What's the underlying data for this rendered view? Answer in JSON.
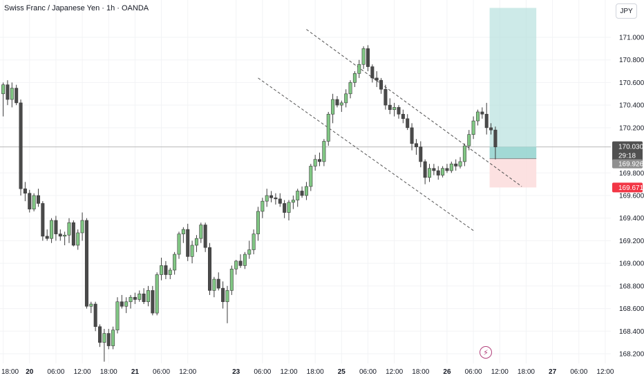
{
  "header": {
    "title": "Swiss Franc / Japanese Yen · 1h · OANDA"
  },
  "price_axis": {
    "currency": "JPY"
  },
  "icons": {
    "alert": "lightning-icon"
  },
  "colors": {
    "up": "#81c784",
    "down": "#4a4a4a",
    "target_zone": "#b2dfdb",
    "stop_zone": "#fcdede",
    "current_price_badge": "#505050",
    "stop_badge": "#f23645"
  },
  "chart_data": {
    "type": "candlestick",
    "title": "Swiss Franc / Japanese Yen · 1h · OANDA",
    "instrument": "CHFJPY",
    "timeframe": "1h",
    "ylim": [
      168.13,
      171.28
    ],
    "yticks": [
      171.0,
      170.8,
      170.6,
      170.4,
      170.2,
      169.8,
      169.6,
      169.4,
      169.2,
      169.0,
      168.8,
      168.6,
      168.4,
      168.2
    ],
    "ytick_labels": [
      "171.000",
      "170.800",
      "170.600",
      "170.400",
      "170.200",
      "169.800",
      "169.600",
      "169.400",
      "169.200",
      "169.000",
      "168.800",
      "168.600",
      "168.400",
      "168.200"
    ],
    "xticks": [
      {
        "label": "18:00",
        "bar": 0,
        "bold": false
      },
      {
        "label": "20",
        "bar": 6,
        "bold": true
      },
      {
        "label": "06:00",
        "bar": 12,
        "bold": false
      },
      {
        "label": "12:00",
        "bar": 18,
        "bold": false
      },
      {
        "label": "18:00",
        "bar": 24,
        "bold": false
      },
      {
        "label": "21",
        "bar": 30,
        "bold": true
      },
      {
        "label": "06:00",
        "bar": 36,
        "bold": false
      },
      {
        "label": "12:00",
        "bar": 42,
        "bold": false
      },
      {
        "label": "23",
        "bar": 53,
        "bold": true
      },
      {
        "label": "06:00",
        "bar": 59,
        "bold": false
      },
      {
        "label": "12:00",
        "bar": 65,
        "bold": false
      },
      {
        "label": "18:00",
        "bar": 71,
        "bold": false
      },
      {
        "label": "25",
        "bar": 77,
        "bold": true
      },
      {
        "label": "06:00",
        "bar": 83,
        "bold": false
      },
      {
        "label": "12:00",
        "bar": 89,
        "bold": false
      },
      {
        "label": "18:00",
        "bar": 95,
        "bold": false
      },
      {
        "label": "26",
        "bar": 101,
        "bold": true
      },
      {
        "label": "06:00",
        "bar": 107,
        "bold": false
      },
      {
        "label": "12:00",
        "bar": 113,
        "bold": false
      },
      {
        "label": "18:00",
        "bar": 119,
        "bold": false
      },
      {
        "label": "27",
        "bar": 125,
        "bold": true
      },
      {
        "label": "06:00",
        "bar": 131,
        "bold": false
      },
      {
        "label": "12:00",
        "bar": 137,
        "bold": false
      }
    ],
    "candles": [
      {
        "o": 170.5,
        "h": 170.6,
        "l": 170.3,
        "c": 170.58
      },
      {
        "o": 170.58,
        "h": 170.62,
        "l": 170.4,
        "c": 170.45
      },
      {
        "o": 170.45,
        "h": 170.6,
        "l": 170.38,
        "c": 170.55
      },
      {
        "o": 170.55,
        "h": 170.58,
        "l": 170.4,
        "c": 170.42
      },
      {
        "o": 170.42,
        "h": 170.45,
        "l": 169.6,
        "c": 169.66
      },
      {
        "o": 169.66,
        "h": 169.72,
        "l": 169.55,
        "c": 169.62
      },
      {
        "o": 169.62,
        "h": 169.65,
        "l": 169.45,
        "c": 169.48
      },
      {
        "o": 169.48,
        "h": 169.62,
        "l": 169.46,
        "c": 169.6
      },
      {
        "o": 169.6,
        "h": 169.66,
        "l": 169.5,
        "c": 169.53
      },
      {
        "o": 169.53,
        "h": 169.55,
        "l": 169.2,
        "c": 169.24
      },
      {
        "o": 169.24,
        "h": 169.3,
        "l": 169.2,
        "c": 169.22
      },
      {
        "o": 169.22,
        "h": 169.4,
        "l": 169.18,
        "c": 169.38
      },
      {
        "o": 169.38,
        "h": 169.42,
        "l": 169.2,
        "c": 169.26
      },
      {
        "o": 169.26,
        "h": 169.3,
        "l": 169.2,
        "c": 169.24
      },
      {
        "o": 169.24,
        "h": 169.28,
        "l": 169.16,
        "c": 169.25
      },
      {
        "o": 169.25,
        "h": 169.4,
        "l": 169.18,
        "c": 169.36
      },
      {
        "o": 169.36,
        "h": 169.38,
        "l": 169.15,
        "c": 169.16
      },
      {
        "o": 169.16,
        "h": 169.3,
        "l": 169.12,
        "c": 169.27
      },
      {
        "o": 169.27,
        "h": 169.45,
        "l": 169.2,
        "c": 169.38
      },
      {
        "o": 169.38,
        "h": 169.4,
        "l": 168.6,
        "c": 168.62
      },
      {
        "o": 168.62,
        "h": 168.66,
        "l": 168.56,
        "c": 168.64
      },
      {
        "o": 168.64,
        "h": 168.66,
        "l": 168.4,
        "c": 168.44
      },
      {
        "o": 168.44,
        "h": 168.46,
        "l": 168.26,
        "c": 168.3
      },
      {
        "o": 168.3,
        "h": 168.42,
        "l": 168.13,
        "c": 168.38
      },
      {
        "o": 168.38,
        "h": 168.42,
        "l": 168.24,
        "c": 168.27
      },
      {
        "o": 168.27,
        "h": 168.44,
        "l": 168.24,
        "c": 168.41
      },
      {
        "o": 168.41,
        "h": 168.7,
        "l": 168.38,
        "c": 168.66
      },
      {
        "o": 168.66,
        "h": 168.72,
        "l": 168.6,
        "c": 168.62
      },
      {
        "o": 168.62,
        "h": 168.7,
        "l": 168.56,
        "c": 168.66
      },
      {
        "o": 168.66,
        "h": 168.72,
        "l": 168.6,
        "c": 168.7
      },
      {
        "o": 168.7,
        "h": 168.74,
        "l": 168.64,
        "c": 168.68
      },
      {
        "o": 168.68,
        "h": 168.76,
        "l": 168.66,
        "c": 168.73
      },
      {
        "o": 168.73,
        "h": 168.78,
        "l": 168.64,
        "c": 168.66
      },
      {
        "o": 168.66,
        "h": 168.8,
        "l": 168.62,
        "c": 168.76
      },
      {
        "o": 168.76,
        "h": 168.8,
        "l": 168.54,
        "c": 168.56
      },
      {
        "o": 168.56,
        "h": 168.92,
        "l": 168.54,
        "c": 168.9
      },
      {
        "o": 168.9,
        "h": 169.05,
        "l": 168.85,
        "c": 168.98
      },
      {
        "o": 168.98,
        "h": 169.02,
        "l": 168.86,
        "c": 168.9
      },
      {
        "o": 168.9,
        "h": 168.96,
        "l": 168.86,
        "c": 168.94
      },
      {
        "o": 168.94,
        "h": 169.1,
        "l": 168.9,
        "c": 169.08
      },
      {
        "o": 169.08,
        "h": 169.28,
        "l": 169.04,
        "c": 169.26
      },
      {
        "o": 169.26,
        "h": 169.32,
        "l": 169.18,
        "c": 169.3
      },
      {
        "o": 169.3,
        "h": 169.35,
        "l": 169.02,
        "c": 169.06
      },
      {
        "o": 169.06,
        "h": 169.2,
        "l": 169.0,
        "c": 169.16
      },
      {
        "o": 169.16,
        "h": 169.25,
        "l": 169.1,
        "c": 169.22
      },
      {
        "o": 169.22,
        "h": 169.36,
        "l": 169.18,
        "c": 169.34
      },
      {
        "o": 169.34,
        "h": 169.36,
        "l": 169.1,
        "c": 169.14
      },
      {
        "o": 169.14,
        "h": 169.18,
        "l": 168.72,
        "c": 168.76
      },
      {
        "o": 168.76,
        "h": 168.88,
        "l": 168.7,
        "c": 168.86
      },
      {
        "o": 168.86,
        "h": 168.92,
        "l": 168.76,
        "c": 168.78
      },
      {
        "o": 168.78,
        "h": 168.84,
        "l": 168.6,
        "c": 168.66
      },
      {
        "o": 168.66,
        "h": 168.8,
        "l": 168.47,
        "c": 168.76
      },
      {
        "o": 168.76,
        "h": 168.98,
        "l": 168.72,
        "c": 168.95
      },
      {
        "o": 168.95,
        "h": 169.03,
        "l": 168.9,
        "c": 169.02
      },
      {
        "o": 169.02,
        "h": 169.08,
        "l": 168.96,
        "c": 168.98
      },
      {
        "o": 168.98,
        "h": 169.1,
        "l": 168.95,
        "c": 169.08
      },
      {
        "o": 169.08,
        "h": 169.2,
        "l": 169.04,
        "c": 169.12
      },
      {
        "o": 169.12,
        "h": 169.3,
        "l": 169.08,
        "c": 169.26
      },
      {
        "o": 169.26,
        "h": 169.5,
        "l": 169.2,
        "c": 169.46
      },
      {
        "o": 169.46,
        "h": 169.58,
        "l": 169.4,
        "c": 169.55
      },
      {
        "o": 169.55,
        "h": 169.66,
        "l": 169.5,
        "c": 169.6
      },
      {
        "o": 169.6,
        "h": 169.64,
        "l": 169.54,
        "c": 169.58
      },
      {
        "o": 169.58,
        "h": 169.62,
        "l": 169.52,
        "c": 169.57
      },
      {
        "o": 169.57,
        "h": 169.62,
        "l": 169.5,
        "c": 169.53
      },
      {
        "o": 169.53,
        "h": 169.56,
        "l": 169.4,
        "c": 169.45
      },
      {
        "o": 169.45,
        "h": 169.56,
        "l": 169.38,
        "c": 169.54
      },
      {
        "o": 169.54,
        "h": 169.6,
        "l": 169.48,
        "c": 169.56
      },
      {
        "o": 169.56,
        "h": 169.66,
        "l": 169.5,
        "c": 169.64
      },
      {
        "o": 169.64,
        "h": 169.68,
        "l": 169.58,
        "c": 169.6
      },
      {
        "o": 169.6,
        "h": 169.72,
        "l": 169.56,
        "c": 169.68
      },
      {
        "o": 169.68,
        "h": 169.88,
        "l": 169.64,
        "c": 169.86
      },
      {
        "o": 169.86,
        "h": 169.96,
        "l": 169.82,
        "c": 169.92
      },
      {
        "o": 169.92,
        "h": 169.98,
        "l": 169.86,
        "c": 169.9
      },
      {
        "o": 169.9,
        "h": 170.1,
        "l": 169.86,
        "c": 170.08
      },
      {
        "o": 170.08,
        "h": 170.34,
        "l": 170.04,
        "c": 170.32
      },
      {
        "o": 170.32,
        "h": 170.5,
        "l": 170.24,
        "c": 170.45
      },
      {
        "o": 170.45,
        "h": 170.48,
        "l": 170.38,
        "c": 170.4
      },
      {
        "o": 170.4,
        "h": 170.44,
        "l": 170.34,
        "c": 170.42
      },
      {
        "o": 170.42,
        "h": 170.54,
        "l": 170.38,
        "c": 170.5
      },
      {
        "o": 170.5,
        "h": 170.62,
        "l": 170.46,
        "c": 170.6
      },
      {
        "o": 170.6,
        "h": 170.7,
        "l": 170.56,
        "c": 170.68
      },
      {
        "o": 170.68,
        "h": 170.8,
        "l": 170.64,
        "c": 170.76
      },
      {
        "o": 170.76,
        "h": 170.92,
        "l": 170.72,
        "c": 170.9
      },
      {
        "o": 170.9,
        "h": 170.93,
        "l": 170.7,
        "c": 170.74
      },
      {
        "o": 170.74,
        "h": 170.76,
        "l": 170.6,
        "c": 170.64
      },
      {
        "o": 170.64,
        "h": 170.7,
        "l": 170.56,
        "c": 170.62
      },
      {
        "o": 170.62,
        "h": 170.64,
        "l": 170.5,
        "c": 170.54
      },
      {
        "o": 170.54,
        "h": 170.58,
        "l": 170.36,
        "c": 170.4
      },
      {
        "o": 170.4,
        "h": 170.46,
        "l": 170.32,
        "c": 170.36
      },
      {
        "o": 170.36,
        "h": 170.42,
        "l": 170.3,
        "c": 170.38
      },
      {
        "o": 170.38,
        "h": 170.4,
        "l": 170.28,
        "c": 170.32
      },
      {
        "o": 170.32,
        "h": 170.36,
        "l": 170.24,
        "c": 170.28
      },
      {
        "o": 170.28,
        "h": 170.32,
        "l": 170.18,
        "c": 170.2
      },
      {
        "o": 170.2,
        "h": 170.24,
        "l": 170.0,
        "c": 170.06
      },
      {
        "o": 170.06,
        "h": 170.1,
        "l": 169.96,
        "c": 170.03
      },
      {
        "o": 170.03,
        "h": 170.08,
        "l": 169.85,
        "c": 169.9
      },
      {
        "o": 169.9,
        "h": 169.92,
        "l": 169.7,
        "c": 169.76
      },
      {
        "o": 169.76,
        "h": 169.88,
        "l": 169.72,
        "c": 169.84
      },
      {
        "o": 169.84,
        "h": 169.88,
        "l": 169.78,
        "c": 169.82
      },
      {
        "o": 169.82,
        "h": 169.86,
        "l": 169.74,
        "c": 169.78
      },
      {
        "o": 169.78,
        "h": 169.86,
        "l": 169.76,
        "c": 169.84
      },
      {
        "o": 169.84,
        "h": 169.88,
        "l": 169.8,
        "c": 169.82
      },
      {
        "o": 169.82,
        "h": 169.9,
        "l": 169.8,
        "c": 169.88
      },
      {
        "o": 169.88,
        "h": 169.92,
        "l": 169.82,
        "c": 169.86
      },
      {
        "o": 169.86,
        "h": 169.94,
        "l": 169.84,
        "c": 169.9
      },
      {
        "o": 169.9,
        "h": 170.06,
        "l": 169.86,
        "c": 170.04
      },
      {
        "o": 170.04,
        "h": 170.18,
        "l": 170.0,
        "c": 170.14
      },
      {
        "o": 170.14,
        "h": 170.3,
        "l": 170.1,
        "c": 170.26
      },
      {
        "o": 170.26,
        "h": 170.36,
        "l": 170.22,
        "c": 170.34
      },
      {
        "o": 170.34,
        "h": 170.38,
        "l": 170.28,
        "c": 170.32
      },
      {
        "o": 170.32,
        "h": 170.42,
        "l": 170.14,
        "c": 170.2
      },
      {
        "o": 170.2,
        "h": 170.24,
        "l": 170.14,
        "c": 170.18
      },
      {
        "o": 170.18,
        "h": 170.21,
        "l": 169.92,
        "c": 170.03
      }
    ],
    "trendlines": [
      {
        "style": "dashed",
        "from": {
          "bar": 69,
          "price": 171.07
        },
        "to": {
          "bar": 118,
          "price": 169.68
        }
      },
      {
        "style": "dashed",
        "from": {
          "bar": 58,
          "price": 170.64
        },
        "to": {
          "bar": 107,
          "price": 169.29
        }
      }
    ],
    "position": {
      "type": "long",
      "entry": 169.926,
      "target": 171.26,
      "stop": 169.671,
      "start_bar": 111,
      "end_bar": 121
    },
    "price_labels": [
      {
        "value": 170.03,
        "text": "170.030",
        "color": "#505050",
        "text_color": "#ffffff"
      },
      {
        "value": 169.926,
        "text": "169.926",
        "color": "#909090",
        "text_color": "#ffffff"
      },
      {
        "value": 169.671,
        "text": "169.671",
        "color": "#f23645",
        "text_color": "#ffffff"
      }
    ],
    "countdown": "29:18",
    "current_price": 170.03
  }
}
